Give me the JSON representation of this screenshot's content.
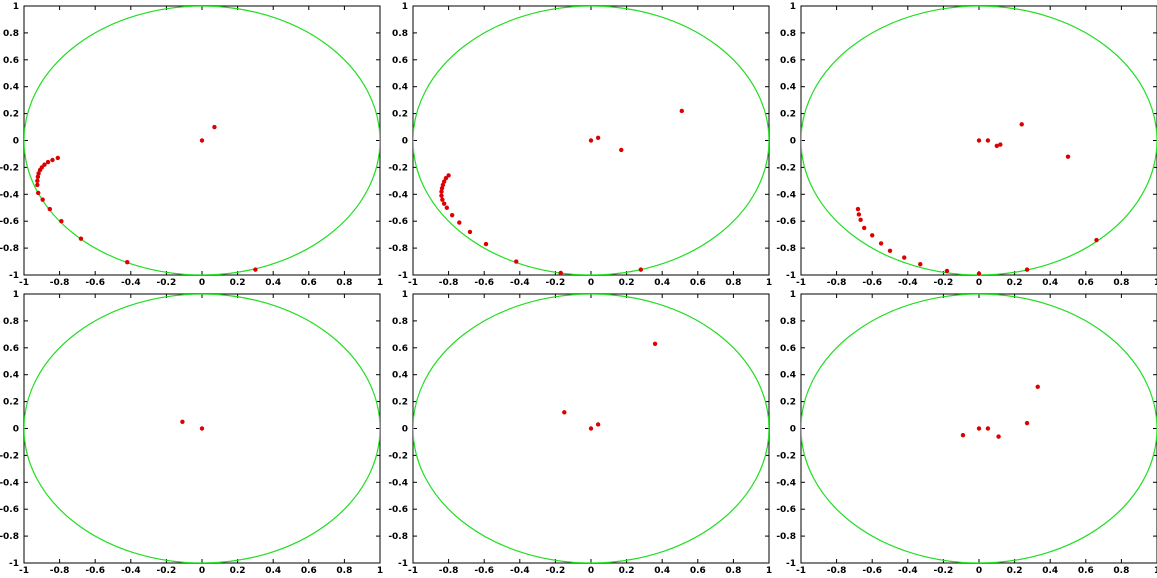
{
  "colors": {
    "circle": "#22dd22",
    "points": "#dd0000",
    "axes": "#000000"
  },
  "xtick_labels": [
    "-1",
    "-0.8",
    "-0.6",
    "-0.4",
    "-0.2",
    "0",
    "0.2",
    "0.4",
    "0.6",
    "0.8",
    "1"
  ],
  "ytick_labels": [
    "1",
    "0.8",
    "0.6",
    "0.4",
    "0.2",
    "0",
    "-0.2",
    "-0.4",
    "-0.6",
    "-0.8",
    "-1"
  ],
  "chart_data": [
    {
      "type": "scatter",
      "xlim": [
        -1,
        1
      ],
      "ylim": [
        -1,
        1
      ],
      "grid": false,
      "circle": {
        "center": [
          0,
          0
        ],
        "radius": 1
      },
      "points": [
        [
          0,
          0
        ],
        [
          0.07,
          0.1
        ],
        [
          -0.81,
          -0.13
        ],
        [
          -0.84,
          -0.145
        ],
        [
          -0.865,
          -0.16
        ],
        [
          -0.885,
          -0.18
        ],
        [
          -0.9,
          -0.2
        ],
        [
          -0.91,
          -0.22
        ],
        [
          -0.918,
          -0.245
        ],
        [
          -0.922,
          -0.27
        ],
        [
          -0.925,
          -0.3
        ],
        [
          -0.925,
          -0.33
        ],
        [
          -0.92,
          -0.39
        ],
        [
          -0.895,
          -0.44
        ],
        [
          -0.855,
          -0.51
        ],
        [
          -0.79,
          -0.6
        ],
        [
          -0.68,
          -0.73
        ],
        [
          -0.42,
          -0.905
        ],
        [
          0.3,
          -0.96
        ]
      ]
    },
    {
      "type": "scatter",
      "xlim": [
        -1,
        1
      ],
      "ylim": [
        -1,
        1
      ],
      "grid": false,
      "circle": {
        "center": [
          0,
          0
        ],
        "radius": 1
      },
      "points": [
        [
          0,
          0
        ],
        [
          0.04,
          0.02
        ],
        [
          0.17,
          -0.07
        ],
        [
          0.51,
          0.22
        ],
        [
          -0.8,
          -0.26
        ],
        [
          -0.815,
          -0.28
        ],
        [
          -0.825,
          -0.305
        ],
        [
          -0.832,
          -0.33
        ],
        [
          -0.837,
          -0.355
        ],
        [
          -0.84,
          -0.38
        ],
        [
          -0.84,
          -0.41
        ],
        [
          -0.835,
          -0.44
        ],
        [
          -0.825,
          -0.47
        ],
        [
          -0.81,
          -0.5
        ],
        [
          -0.78,
          -0.555
        ],
        [
          -0.74,
          -0.61
        ],
        [
          -0.68,
          -0.68
        ],
        [
          -0.59,
          -0.77
        ],
        [
          -0.42,
          -0.9
        ],
        [
          -0.17,
          -0.985
        ],
        [
          0.28,
          -0.96
        ]
      ]
    },
    {
      "type": "scatter",
      "xlim": [
        -1,
        1
      ],
      "ylim": [
        -1,
        1
      ],
      "grid": false,
      "circle": {
        "center": [
          0,
          0
        ],
        "radius": 1
      },
      "points": [
        [
          0,
          0
        ],
        [
          0.05,
          0
        ],
        [
          0.1,
          -0.04
        ],
        [
          0.12,
          -0.03
        ],
        [
          0.24,
          0.12
        ],
        [
          0.5,
          -0.12
        ],
        [
          -0.68,
          -0.51
        ],
        [
          -0.675,
          -0.55
        ],
        [
          -0.665,
          -0.59
        ],
        [
          -0.645,
          -0.65
        ],
        [
          -0.6,
          -0.705
        ],
        [
          -0.55,
          -0.765
        ],
        [
          -0.5,
          -0.82
        ],
        [
          -0.42,
          -0.87
        ],
        [
          -0.33,
          -0.92
        ],
        [
          -0.18,
          -0.97
        ],
        [
          0,
          -0.99
        ],
        [
          0.27,
          -0.96
        ],
        [
          0.66,
          -0.74
        ]
      ]
    },
    {
      "type": "scatter",
      "xlim": [
        -1,
        1
      ],
      "ylim": [
        -1,
        1
      ],
      "grid": false,
      "circle": {
        "center": [
          0,
          0
        ],
        "radius": 1
      },
      "points": [
        [
          -0.11,
          0.05
        ],
        [
          0,
          0
        ]
      ]
    },
    {
      "type": "scatter",
      "xlim": [
        -1,
        1
      ],
      "ylim": [
        -1,
        1
      ],
      "grid": false,
      "circle": {
        "center": [
          0,
          0
        ],
        "radius": 1
      },
      "points": [
        [
          -0.15,
          0.12
        ],
        [
          0,
          0
        ],
        [
          0.04,
          0.03
        ],
        [
          0.36,
          0.63
        ]
      ]
    },
    {
      "type": "scatter",
      "xlim": [
        -1,
        1
      ],
      "ylim": [
        -1,
        1
      ],
      "grid": false,
      "circle": {
        "center": [
          0,
          0
        ],
        "radius": 1
      },
      "points": [
        [
          -0.09,
          -0.05
        ],
        [
          0,
          0
        ],
        [
          0.05,
          0
        ],
        [
          0.11,
          -0.06
        ],
        [
          0.27,
          0.04
        ],
        [
          0.33,
          0.31
        ]
      ]
    }
  ]
}
